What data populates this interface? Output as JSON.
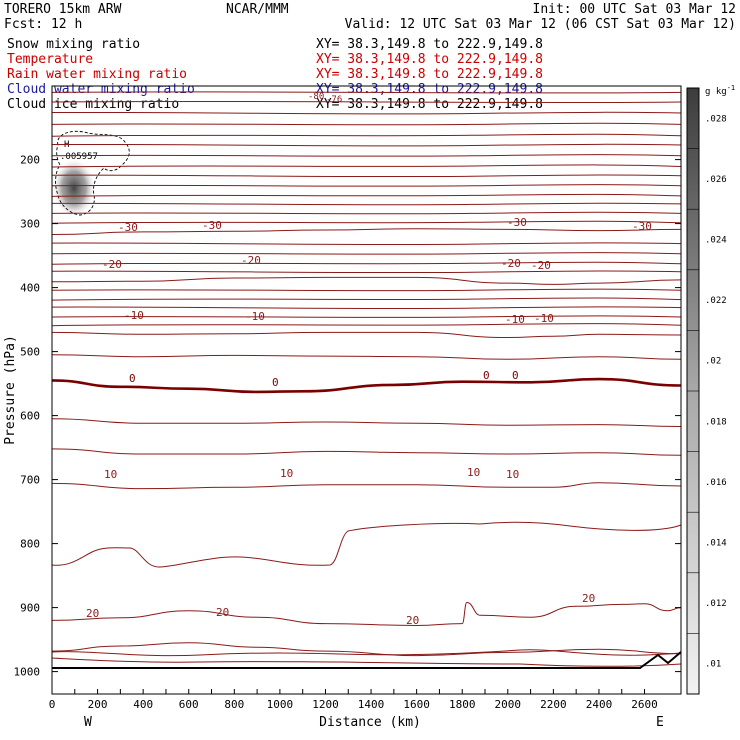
{
  "header": {
    "model": "TORERO  15km ARW",
    "center": "NCAR/MMM",
    "init": "Init: 00 UTC Sat 03 Mar 12",
    "fcst": "Fcst:   12 h",
    "valid": "Valid: 12 UTC Sat 03 Mar 12 (06 CST Sat 03 Mar 12)"
  },
  "fields": [
    {
      "label": "Snow mixing ratio",
      "xy": "XY=  38.3,149.8 to 222.9,149.8",
      "label_color": "#000000",
      "xy_color": "#000000"
    },
    {
      "label": "Temperature",
      "xy": "XY=  38.3,149.8 to 222.9,149.8",
      "label_color": "#cc0000",
      "xy_color": "#cc0000"
    },
    {
      "label": "Rain water mixing ratio",
      "xy": "XY=  38.3,149.8 to 222.9,149.8",
      "label_color": "#cc0000",
      "xy_color": "#cc0000"
    },
    {
      "label": "Cloud water mixing ratio",
      "xy": "XY=  38.3,149.8 to 222.9,149.8",
      "label_color": "#1a1aa0",
      "xy_color": "#1a1aa0"
    },
    {
      "label": "Cloud ice mixing ratio",
      "xy": "XY=  38.3,149.8 to 222.9,149.8",
      "label_color": "#000000",
      "xy_color": "#000000"
    }
  ],
  "colors": {
    "isotherm": "#8b1a1a",
    "zero_isotherm": "#7a0000",
    "frame": "#000000",
    "cloud_water": "#1a1aa0"
  },
  "chart_data": {
    "type": "contour",
    "xlabel": "Distance (km)",
    "ylabel": "Pressure (hPa)",
    "xlim": [
      0,
      2760
    ],
    "ylim": [
      1035,
      85
    ],
    "x_ticks": [
      "0",
      "100",
      "200",
      "300",
      "400",
      "500",
      "600",
      "700",
      "800",
      "900",
      "1000",
      "1100",
      "1200",
      "1300",
      "1400",
      "1500",
      "1600",
      "1700",
      "1800",
      "1900",
      "2000",
      "2100",
      "2200",
      "2300",
      "2400",
      "2500",
      "2600"
    ],
    "x_ticks_labeled": [
      0,
      200,
      400,
      600,
      800,
      1000,
      1200,
      1400,
      1600,
      1800,
      2000,
      2200,
      2400,
      2600
    ],
    "y_ticks": [
      200,
      300,
      400,
      500,
      600,
      700,
      800,
      900,
      1000
    ],
    "x_end_labels": {
      "left": "W",
      "right": "E"
    },
    "high_label": "H",
    "max_value_label": ".005957",
    "colorbar": {
      "unit": "g kg-1",
      "unit_base": "g kg",
      "unit_exp": "-1",
      "ticks": [
        ".028",
        ".026",
        ".024",
        ".022",
        ".02",
        ".018",
        ".016",
        ".014",
        ".012",
        ".01"
      ],
      "levels": [
        0.01,
        0.012,
        0.014,
        0.016,
        0.018,
        0.02,
        0.022,
        0.024,
        0.026,
        0.028,
        0.03
      ]
    },
    "isotherm_labels": {
      "minus30": [
        "-30",
        "-30",
        "-30",
        "-30"
      ],
      "minus20": [
        "-20",
        "-20",
        "-20",
        "-20"
      ],
      "minus10": [
        "-10",
        "-10",
        "-10",
        "-10"
      ],
      "zero": [
        "0",
        "0",
        "0",
        "0"
      ],
      "plus10": [
        "10",
        "10",
        "10",
        "10"
      ],
      "plus20": [
        "20",
        "20",
        "20",
        "20"
      ],
      "top": [
        "-80",
        "-76"
      ]
    },
    "isotherms": [
      {
        "value": -30,
        "points": [
          [
            0,
            317
          ],
          [
            400,
            313
          ],
          [
            800,
            312
          ],
          [
            1200,
            310
          ],
          [
            1600,
            308
          ],
          [
            2000,
            309
          ],
          [
            2400,
            311
          ],
          [
            2760,
            309
          ]
        ]
      },
      {
        "value": -20,
        "points": [
          [
            0,
            391
          ],
          [
            400,
            390
          ],
          [
            800,
            385
          ],
          [
            1200,
            384
          ],
          [
            1600,
            384
          ],
          [
            2000,
            393
          ],
          [
            2200,
            395
          ],
          [
            2400,
            393
          ],
          [
            2760,
            388
          ]
        ]
      },
      {
        "value": -10,
        "points": [
          [
            0,
            470
          ],
          [
            400,
            473
          ],
          [
            800,
            472
          ],
          [
            1200,
            470
          ],
          [
            1600,
            470
          ],
          [
            2000,
            478
          ],
          [
            2200,
            476
          ],
          [
            2400,
            473
          ],
          [
            2760,
            474
          ]
        ]
      },
      {
        "value": 0,
        "points": [
          [
            0,
            545
          ],
          [
            300,
            555
          ],
          [
            600,
            558
          ],
          [
            900,
            563
          ],
          [
            1100,
            562
          ],
          [
            1500,
            552
          ],
          [
            1800,
            547
          ],
          [
            2100,
            548
          ],
          [
            2400,
            543
          ],
          [
            2760,
            553
          ]
        ]
      },
      {
        "value": 10,
        "points": [
          [
            0,
            706
          ],
          [
            400,
            714
          ],
          [
            800,
            712
          ],
          [
            1200,
            708
          ],
          [
            1600,
            708
          ],
          [
            2000,
            712
          ],
          [
            2200,
            712
          ],
          [
            2400,
            705
          ],
          [
            2760,
            710
          ]
        ]
      },
      {
        "value": 20,
        "points": [
          [
            0,
            920
          ],
          [
            300,
            916
          ],
          [
            600,
            905
          ],
          [
            900,
            915
          ],
          [
            1200,
            925
          ],
          [
            1600,
            928
          ],
          [
            1800,
            925
          ],
          [
            1820,
            892
          ],
          [
            1880,
            912
          ],
          [
            2100,
            915
          ],
          [
            2300,
            898
          ],
          [
            2500,
            895
          ],
          [
            2600,
            894
          ],
          [
            2700,
            905
          ],
          [
            2760,
            900
          ]
        ]
      }
    ]
  }
}
